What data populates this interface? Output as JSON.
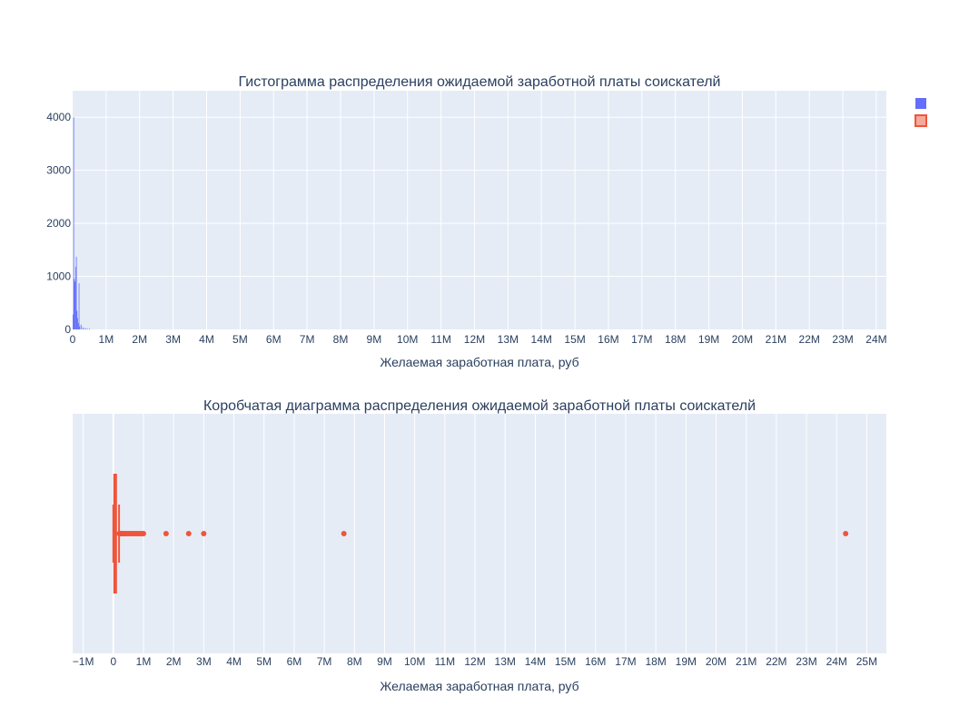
{
  "colors": {
    "histogram": "#636efa",
    "box": "#ef553b",
    "plot_bg": "#e5ecf6",
    "grid": "#ffffff",
    "text": "#2a3f5f"
  },
  "legend": {
    "placement": "top-right",
    "entries": [
      "",
      ""
    ]
  },
  "chart_data": [
    {
      "type": "histogram",
      "title": "Гистограмма распределения ожидаемой заработной платы соискателй",
      "xlabel": "Желаемая заработная плата, руб",
      "ylabel": "",
      "xlim": [
        0,
        24300000
      ],
      "ylim": [
        0,
        4500
      ],
      "x_ticks": [
        {
          "v": 0,
          "label": "0"
        },
        {
          "v": 1000000,
          "label": "1M"
        },
        {
          "v": 2000000,
          "label": "2M"
        },
        {
          "v": 3000000,
          "label": "3M"
        },
        {
          "v": 4000000,
          "label": "4M"
        },
        {
          "v": 5000000,
          "label": "5M"
        },
        {
          "v": 6000000,
          "label": "6M"
        },
        {
          "v": 7000000,
          "label": "7M"
        },
        {
          "v": 8000000,
          "label": "8M"
        },
        {
          "v": 9000000,
          "label": "9M"
        },
        {
          "v": 10000000,
          "label": "10M"
        },
        {
          "v": 11000000,
          "label": "11M"
        },
        {
          "v": 12000000,
          "label": "12M"
        },
        {
          "v": 13000000,
          "label": "13M"
        },
        {
          "v": 14000000,
          "label": "14M"
        },
        {
          "v": 15000000,
          "label": "15M"
        },
        {
          "v": 16000000,
          "label": "16M"
        },
        {
          "v": 17000000,
          "label": "17M"
        },
        {
          "v": 18000000,
          "label": "18M"
        },
        {
          "v": 19000000,
          "label": "19M"
        },
        {
          "v": 20000000,
          "label": "20M"
        },
        {
          "v": 21000000,
          "label": "21M"
        },
        {
          "v": 22000000,
          "label": "22M"
        },
        {
          "v": 23000000,
          "label": "23M"
        },
        {
          "v": 24000000,
          "label": "24M"
        }
      ],
      "y_ticks": [
        {
          "v": 0,
          "label": "0"
        },
        {
          "v": 1000,
          "label": "1000"
        },
        {
          "v": 2000,
          "label": "2000"
        },
        {
          "v": 3000,
          "label": "3000"
        },
        {
          "v": 4000,
          "label": "4000"
        }
      ],
      "bins": [
        {
          "x": 10000,
          "count": 280
        },
        {
          "x": 30000,
          "count": 4000
        },
        {
          "x": 50000,
          "count": 950
        },
        {
          "x": 70000,
          "count": 900
        },
        {
          "x": 90000,
          "count": 1180
        },
        {
          "x": 110000,
          "count": 1370
        },
        {
          "x": 130000,
          "count": 350
        },
        {
          "x": 150000,
          "count": 210
        },
        {
          "x": 170000,
          "count": 120
        },
        {
          "x": 190000,
          "count": 870
        },
        {
          "x": 210000,
          "count": 60
        },
        {
          "x": 250000,
          "count": 90
        },
        {
          "x": 300000,
          "count": 40
        },
        {
          "x": 350000,
          "count": 25
        },
        {
          "x": 400000,
          "count": 20
        },
        {
          "x": 450000,
          "count": 12
        },
        {
          "x": 500000,
          "count": 15
        }
      ],
      "bin_width": 20000,
      "grid": true
    },
    {
      "type": "box",
      "title": "Коробчатая диаграмма распределения ожидаемой заработной платы соискателй",
      "xlabel": "Желаемая заработная плата, руб",
      "xlim": [
        -1350000,
        25650000
      ],
      "x_ticks": [
        {
          "v": -1000000,
          "label": "−1M"
        },
        {
          "v": 0,
          "label": "0"
        },
        {
          "v": 1000000,
          "label": "1M"
        },
        {
          "v": 2000000,
          "label": "2M"
        },
        {
          "v": 3000000,
          "label": "3M"
        },
        {
          "v": 4000000,
          "label": "4M"
        },
        {
          "v": 5000000,
          "label": "5M"
        },
        {
          "v": 6000000,
          "label": "6M"
        },
        {
          "v": 7000000,
          "label": "7M"
        },
        {
          "v": 8000000,
          "label": "8M"
        },
        {
          "v": 9000000,
          "label": "9M"
        },
        {
          "v": 10000000,
          "label": "10M"
        },
        {
          "v": 11000000,
          "label": "11M"
        },
        {
          "v": 12000000,
          "label": "12M"
        },
        {
          "v": 13000000,
          "label": "13M"
        },
        {
          "v": 14000000,
          "label": "14M"
        },
        {
          "v": 15000000,
          "label": "15M"
        },
        {
          "v": 16000000,
          "label": "16M"
        },
        {
          "v": 17000000,
          "label": "17M"
        },
        {
          "v": 18000000,
          "label": "18M"
        },
        {
          "v": 19000000,
          "label": "19M"
        },
        {
          "v": 20000000,
          "label": "20M"
        },
        {
          "v": 21000000,
          "label": "21M"
        },
        {
          "v": 22000000,
          "label": "22M"
        },
        {
          "v": 23000000,
          "label": "23M"
        },
        {
          "v": 24000000,
          "label": "24M"
        },
        {
          "v": 25000000,
          "label": "25M"
        }
      ],
      "lower_fence": 0,
      "q1": 30000,
      "median": 50000,
      "q3": 80000,
      "upper_fence": 190000,
      "outliers": [
        200000,
        220000,
        240000,
        260000,
        280000,
        300000,
        330000,
        360000,
        400000,
        450000,
        500000,
        550000,
        600000,
        650000,
        700000,
        750000,
        800000,
        850000,
        900000,
        950000,
        1000000,
        1750000,
        2500000,
        3000000,
        7650000,
        24300000
      ],
      "grid": true
    }
  ]
}
